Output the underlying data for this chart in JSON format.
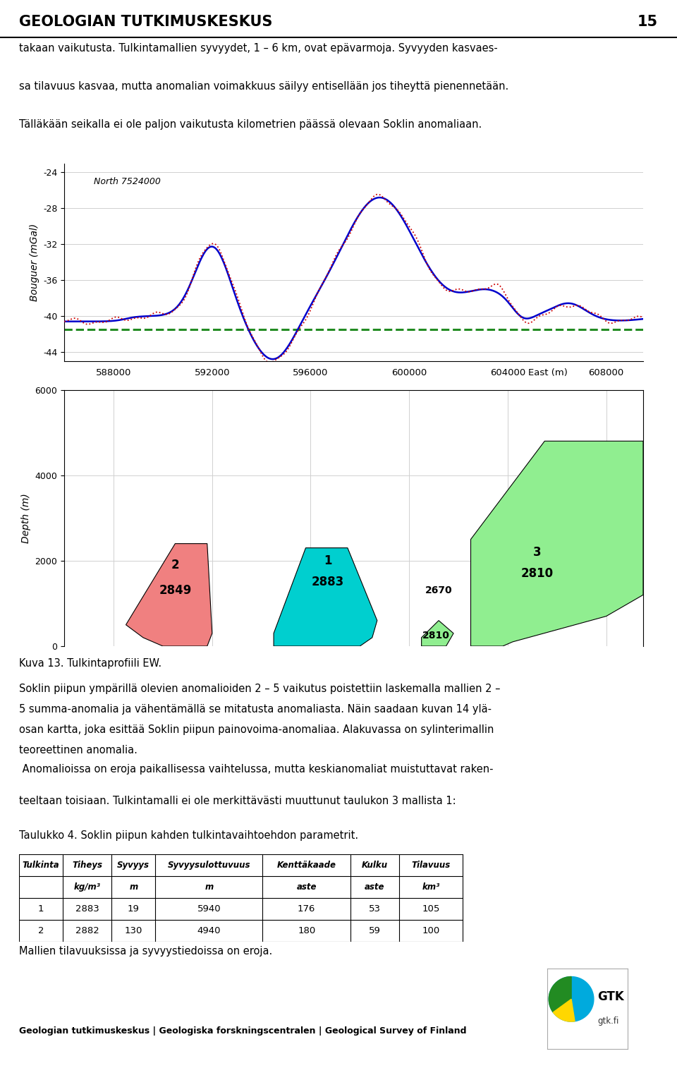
{
  "page_title": "GEOLOGIAN TUTKIMUSKESKUS",
  "page_number": "15",
  "background_color": "#ffffff",
  "text_paragraphs": [
    "takaan vaikutusta. Tulkintamallien syvyydet, 1 – 6 km, ovat epävarmoja. Syvyyden kasvaes-",
    "sa tilavuus kasvaa, mutta anomalian voimakkuus säilyy entisellään jos tiheyttä pienennetään.",
    "Tälläkään seikalla ei ole paljon vaikutusta kilometrien päässä olevaan Soklin anomaliaan."
  ],
  "chart_north_label": "North 7524000",
  "bouguer_ylabel": "Bouguer (mGal)",
  "depth_ylabel": "Depth (m)",
  "east_xlabel": "East (m)",
  "x_ticks": [
    588000,
    592000,
    596000,
    600000,
    604000,
    608000
  ],
  "x_lim": [
    586000,
    609500
  ],
  "bouguer_ylim": [
    -45,
    -23
  ],
  "bouguer_yticks": [
    -44,
    -40,
    -36,
    -32,
    -28,
    -24
  ],
  "depth_ylim": [
    6000,
    0
  ],
  "depth_yticks": [
    0,
    2000,
    4000,
    6000
  ],
  "dashed_line_y": -41.5,
  "dashed_line_color": "#228B22",
  "blue_line_color": "#0000CC",
  "red_dotted_color": "#CC0000",
  "body1_color": "#F08080",
  "body2_color": "#00CFCF",
  "body3_color": "#90EE90",
  "body1_label": "2849",
  "body1_sublabel": "2",
  "body2_label": "2883",
  "body2_sublabel": "1",
  "body3_label": "2810",
  "body3_sublabel_top": "2810",
  "body4_label": "2670",
  "body5_label": "2810",
  "body5_sublabel": "3",
  "caption": "Kuva 13. Tulkintaprofiili EW.",
  "body_text1": "Soklin piipun ympärillä olevien anomalioiden 2 – 5 vaikutus poistettiin laskemalla mallien 2 –",
  "body_text2": "5 summa-anomalia ja vähentämällä se mitatusta anomaliasta. Näin saadaan kuvan 14 ylä-",
  "body_text3": "osan kartta, joka esittää Soklin piipun painovoima-anomaliaa. Alakuvassa on sylinterimallin",
  "body_text4": "teoreettinen anomalia.",
  "body_text5": " Anomalioissa on eroja paikallisessa vaihtelussa, mutta keskianomaliat muistuttavat raken-",
  "body_text6": "teeltaan toisiaan. Tulkintamalli ei ole merkittävästi muuttunut taulukon 3 mallista 1:",
  "table_title": "Taulukko 4. Soklin piipun kahden tulkintavaihtoehdon parametrit.",
  "table_headers": [
    "Tulkinta",
    "Tiheys",
    "Syvyys",
    "Syvyysulottuvuus",
    "Kenttäkaade",
    "Kulku",
    "Tilavuus"
  ],
  "table_subheaders": [
    "",
    "kg/m³",
    "m",
    "m",
    "aste",
    "aste",
    "km³"
  ],
  "table_data": [
    [
      "1",
      "2883",
      "19",
      "5940",
      "176",
      "53",
      "105"
    ],
    [
      "2",
      "2882",
      "130",
      "4940",
      "180",
      "59",
      "100"
    ]
  ],
  "footer_text": "Geologian tutkimuskeskus | Geologiska forskningscentralen | Geological Survey of Finland",
  "footer_bar_color": "#FFD700",
  "ending_text": "Mallien tilavuuksissa ja syvyystiedoissa on eroja."
}
